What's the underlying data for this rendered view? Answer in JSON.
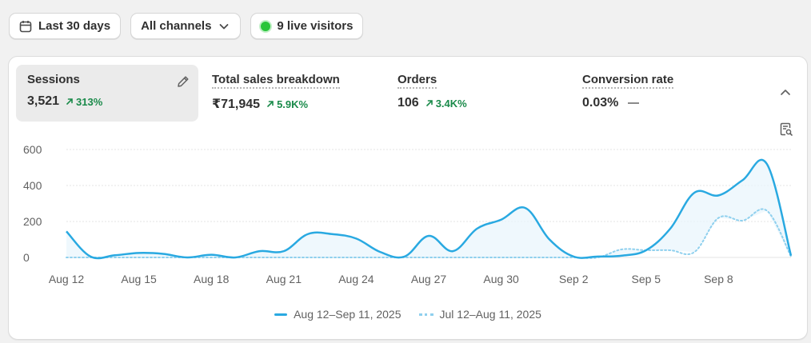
{
  "toolbar": {
    "date_range_label": "Last 30 days",
    "channels_label": "All channels",
    "live_visitors_label": "9 live visitors"
  },
  "metrics": [
    {
      "label": "Sessions",
      "value": "3,521",
      "change": "313%",
      "trend": "up",
      "active": true
    },
    {
      "label": "Total sales breakdown",
      "value": "₹71,945",
      "change": "5.9K%",
      "trend": "up"
    },
    {
      "label": "Orders",
      "value": "106",
      "change": "3.4K%",
      "trend": "up"
    },
    {
      "label": "Conversion rate",
      "value": "0.03%",
      "change": "",
      "trend": "flat"
    }
  ],
  "colors": {
    "primary_series": "#29a9e1",
    "comparison_series": "#8fd0ee",
    "positive_change": "#1a8a4a"
  },
  "icons": {
    "date": "calendar-icon",
    "channels": "chevron-down-icon",
    "live": "live-dot-icon",
    "edit": "pencil-icon",
    "collapse": "chevron-up-icon",
    "report": "report-search-icon"
  },
  "chart_data": {
    "type": "line",
    "ylim": [
      0,
      600
    ],
    "yticks": [
      0,
      200,
      400,
      600
    ],
    "x_tick_labels": [
      "Aug 12",
      "Aug 15",
      "Aug 18",
      "Aug 21",
      "Aug 24",
      "Aug 27",
      "Aug 30",
      "Sep 2",
      "Sep 5",
      "Sep 8"
    ],
    "x_dates": [
      "Aug 12",
      "Aug 13",
      "Aug 14",
      "Aug 15",
      "Aug 16",
      "Aug 17",
      "Aug 18",
      "Aug 19",
      "Aug 20",
      "Aug 21",
      "Aug 22",
      "Aug 23",
      "Aug 24",
      "Aug 25",
      "Aug 26",
      "Aug 27",
      "Aug 28",
      "Aug 29",
      "Aug 30",
      "Aug 31",
      "Sep 1",
      "Sep 2",
      "Sep 3",
      "Sep 4",
      "Sep 5",
      "Sep 6",
      "Sep 7",
      "Sep 8",
      "Sep 9",
      "Sep 10",
      "Sep 11"
    ],
    "grid": true,
    "legend_position": "bottom-center",
    "series": [
      {
        "name": "Aug 12–Sep 11, 2025",
        "style": "solid",
        "values": [
          145,
          5,
          12,
          25,
          20,
          0,
          15,
          0,
          35,
          35,
          130,
          130,
          105,
          30,
          5,
          120,
          35,
          160,
          210,
          275,
          100,
          5,
          5,
          10,
          40,
          160,
          360,
          345,
          430,
          520,
          10
        ]
      },
      {
        "name": "Jul 12–Aug 11, 2025",
        "style": "dotted",
        "values": [
          0,
          0,
          0,
          0,
          0,
          0,
          0,
          0,
          0,
          0,
          0,
          0,
          0,
          0,
          0,
          0,
          0,
          0,
          0,
          0,
          0,
          0,
          0,
          45,
          40,
          40,
          30,
          220,
          205,
          260,
          5
        ]
      }
    ]
  }
}
